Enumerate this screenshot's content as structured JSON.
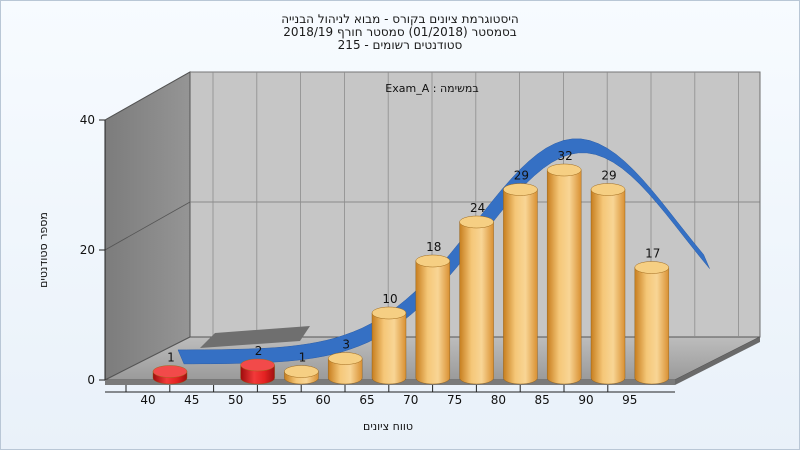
{
  "chart_data": {
    "type": "bar",
    "title_lines": [
      "היסטוגרמת ציונים בקורס - מבוא לניהול הבנייה",
      "בסמסטר  (01/2018)  סמסטר חורף 2018/19",
      "סטודנטים רשומים - 215"
    ],
    "annotation": "במשימה : Exam_A",
    "xlabel": "טווח ציונים",
    "ylabel": "מספר סטודנטים",
    "x_ticks": [
      "40",
      "45",
      "50",
      "55",
      "60",
      "65",
      "70",
      "75",
      "80",
      "85",
      "90",
      "95"
    ],
    "y_ticks": [
      "0",
      "20",
      "40"
    ],
    "ylim": [
      0,
      40
    ],
    "bars": [
      {
        "start": 40,
        "value": 1,
        "label": "1",
        "color": "#d81b1b"
      },
      {
        "start": 50,
        "value": 2,
        "label": "2",
        "color": "#d81b1b"
      },
      {
        "start": 55,
        "value": 1,
        "label": "1",
        "color": "#e8a84a"
      },
      {
        "start": 60,
        "value": 3,
        "label": "3",
        "color": "#e8a84a"
      },
      {
        "start": 65,
        "value": 10,
        "label": "10",
        "color": "#e8a84a"
      },
      {
        "start": 70,
        "value": 18,
        "label": "18",
        "color": "#e8a84a"
      },
      {
        "start": 75,
        "value": 24,
        "label": "24",
        "color": "#e8a84a"
      },
      {
        "start": 80,
        "value": 29,
        "label": "29",
        "color": "#e8a84a"
      },
      {
        "start": 85,
        "value": 32,
        "label": "32",
        "color": "#e8a84a"
      },
      {
        "start": 90,
        "value": 29,
        "label": "29",
        "color": "#e8a84a"
      },
      {
        "start": 95,
        "value": 17,
        "label": "17",
        "color": "#e8a84a"
      }
    ],
    "curve_color": "#3570c4",
    "grid": true,
    "colors": {
      "back_wall": "#c9c9c9",
      "side_wall": "#8a8a8a",
      "floor": "#a9a9a9",
      "failing_bar": "#d81b1b",
      "passing_bar": "#e8a84a"
    }
  }
}
